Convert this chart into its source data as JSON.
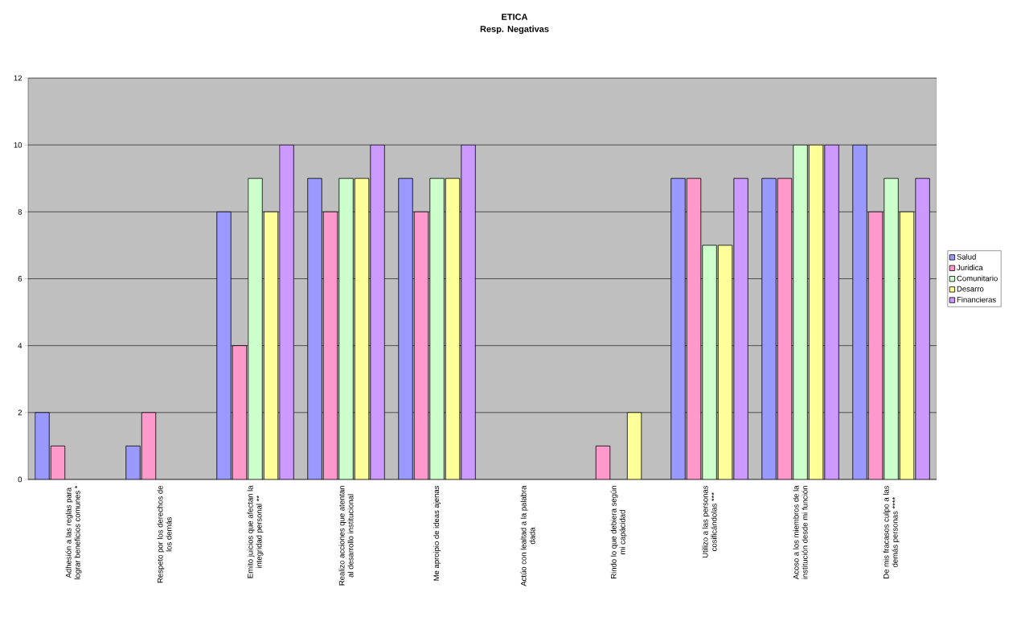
{
  "chart_data": {
    "type": "bar",
    "title": "ETICA",
    "subtitle": "Resp.  Negativas",
    "categories": [
      "Adhesión a las reglas para lograr beneficios comunes *",
      "Respeto por los derechos de los demás",
      "Emito juicios que afectan la integridad personal **",
      "Realizo acciones que atentan al desarrollo institucional",
      "Me aproipio de ideas ajenas",
      "Actúo con lealtad a la palabra dada",
      "Rindo lo que debiera según mi capácidad",
      "Utilizo a las personas cosificándolas ***",
      "Acoso a los miembros de la institución desde mi función",
      "De mis fracasos culpo a las demás personas ****"
    ],
    "series": [
      {
        "name": "Salud",
        "color": "#9999ff",
        "values": [
          2,
          1,
          8,
          9,
          9,
          null,
          null,
          9,
          9,
          10
        ]
      },
      {
        "name": "Juridica",
        "color": "#ff99cc",
        "values": [
          1,
          2,
          4,
          8,
          8,
          null,
          1,
          9,
          9,
          8
        ]
      },
      {
        "name": "Comunitario",
        "color": "#ccffcc",
        "values": [
          null,
          null,
          9,
          9,
          9,
          null,
          null,
          7,
          10,
          9
        ]
      },
      {
        "name": "Desarro",
        "color": "#ffff99",
        "values": [
          null,
          null,
          8,
          9,
          9,
          null,
          2,
          7,
          10,
          8
        ]
      },
      {
        "name": "Financieras",
        "color": "#cc99ff",
        "values": [
          null,
          null,
          10,
          10,
          10,
          null,
          null,
          9,
          10,
          9
        ]
      }
    ],
    "ylim": [
      0,
      12
    ],
    "yticks": [
      0,
      2,
      4,
      6,
      8,
      10,
      12
    ],
    "grid": "y",
    "legend": "right"
  }
}
